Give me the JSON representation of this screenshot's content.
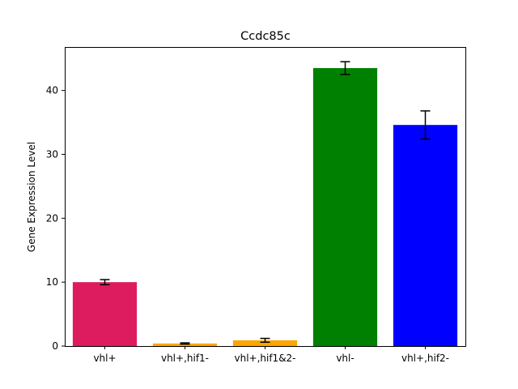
{
  "chart_data": {
    "type": "bar",
    "title": "Ccdc85c",
    "xlabel": "",
    "ylabel": "Gene Expression Level",
    "categories": [
      "vhl+",
      "vhl+,hif1-",
      "vhl+,hif1&2-",
      "vhl-",
      "vhl+,hif2-"
    ],
    "values": [
      10.0,
      0.4,
      0.9,
      43.5,
      34.6
    ],
    "errors": [
      0.4,
      0.1,
      0.3,
      1.0,
      2.2
    ],
    "colors": [
      "#dc1c5e",
      "#ffa500",
      "#ffa500",
      "#008000",
      "#0000ff"
    ],
    "ylim": [
      0,
      46.8
    ],
    "yticks": [
      0,
      10,
      20,
      30,
      40
    ],
    "grid": false,
    "legend": "none"
  }
}
